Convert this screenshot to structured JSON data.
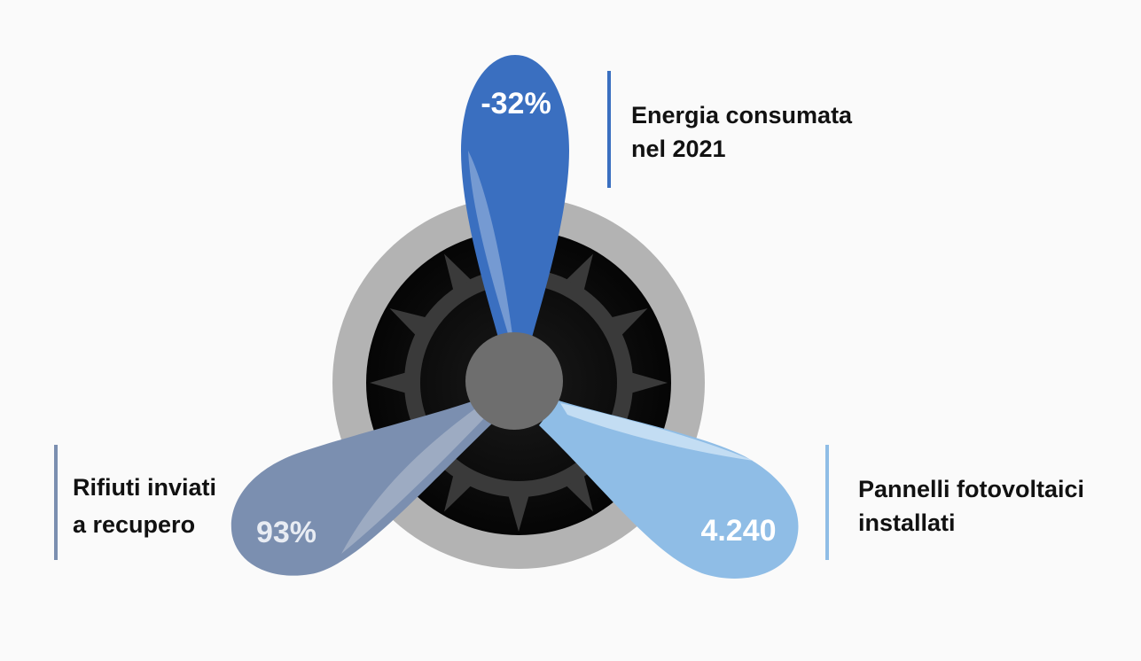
{
  "items": [
    {
      "id": "energy",
      "value": "-32%",
      "label_line1": "Energia consumata",
      "label_line2": "nel 2021",
      "color": "#3a6fc0"
    },
    {
      "id": "waste",
      "value": "93%",
      "label_line1": "Rifiuti inviati",
      "label_line2": "a recupero",
      "color": "#7b8fb0"
    },
    {
      "id": "solar",
      "value": "4.240",
      "label_line1": "Pannelli fotovoltaici",
      "label_line2": "installati",
      "color": "#8fbde6"
    }
  ],
  "palette": {
    "outer_ring": "#b3b3b3",
    "dark_disk": "#0d0d0d",
    "gear": "#3a3a3a",
    "hub": "#6e6e6e",
    "label_bar_energy": "#3a6fc0",
    "label_bar_waste": "#7b8fb0",
    "label_bar_solar": "#8fbde6"
  }
}
